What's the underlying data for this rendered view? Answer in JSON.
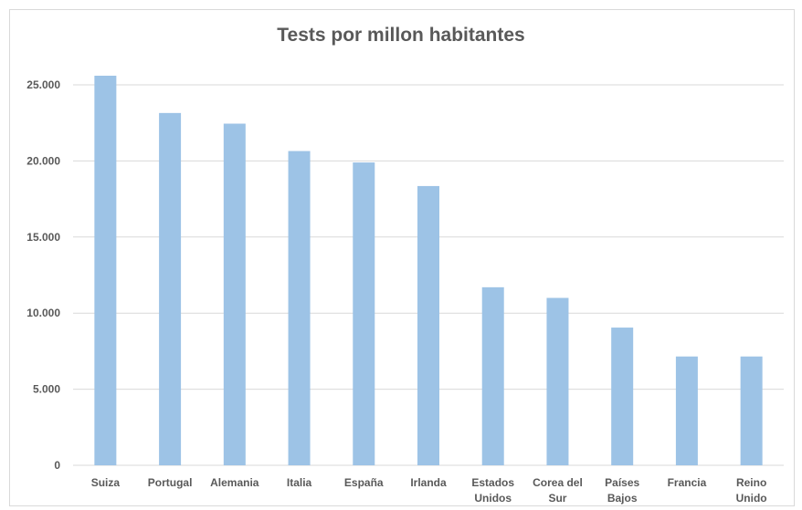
{
  "chart_data": {
    "type": "bar",
    "title": "Tests por millon habitantes",
    "xlabel": "",
    "ylabel": "",
    "ylim": [
      0,
      25000
    ],
    "yticks": [
      {
        "value": 0,
        "label": "0"
      },
      {
        "value": 5000,
        "label": "5.000"
      },
      {
        "value": 10000,
        "label": "10.000"
      },
      {
        "value": 15000,
        "label": "15.000"
      },
      {
        "value": 20000,
        "label": "20.000"
      },
      {
        "value": 25000,
        "label": "25.000"
      }
    ],
    "grid": true,
    "legend": "none",
    "bar_color": "#9dc3e6",
    "categories": [
      [
        "Suiza"
      ],
      [
        "Portugal"
      ],
      [
        "Alemania"
      ],
      [
        "Italia"
      ],
      [
        "España"
      ],
      [
        "Irlanda"
      ],
      [
        "Estados",
        "Unidos"
      ],
      [
        "Corea del",
        "Sur"
      ],
      [
        "Países",
        "Bajos"
      ],
      [
        "Francia"
      ],
      [
        "Reino",
        "Unido"
      ]
    ],
    "values": [
      25600,
      23150,
      22450,
      20650,
      19900,
      18350,
      11700,
      11000,
      9050,
      7150,
      7150
    ]
  }
}
